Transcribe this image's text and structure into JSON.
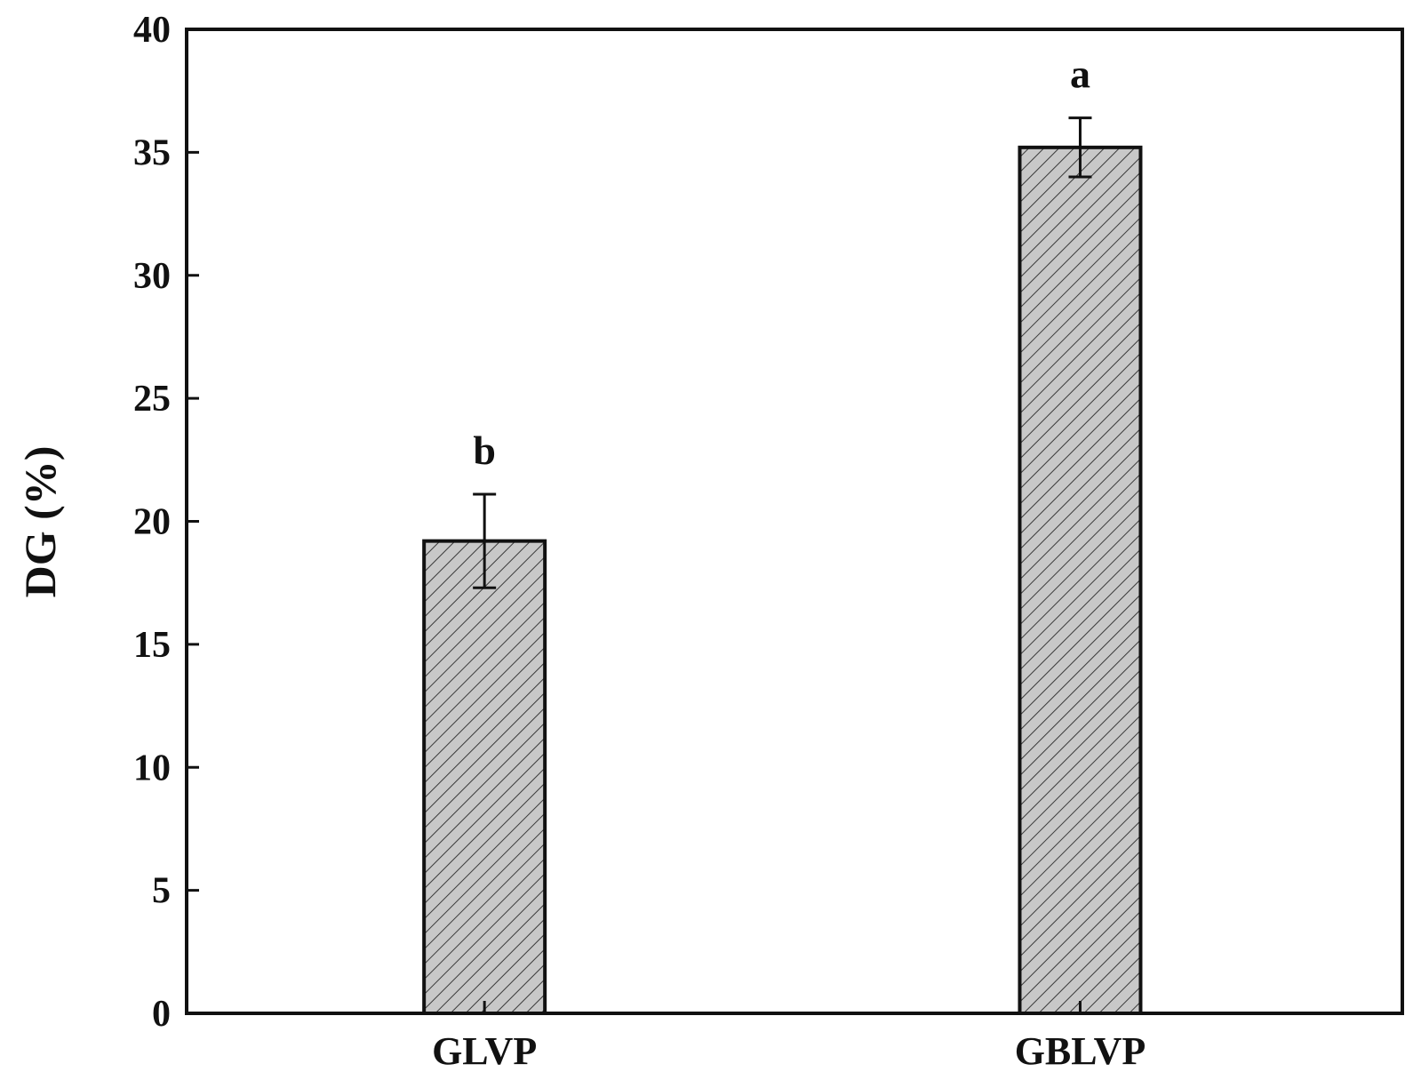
{
  "chart_data": {
    "type": "bar",
    "categories": [
      "GLVP",
      "GBLVP"
    ],
    "values": [
      19.2,
      35.2
    ],
    "errors": [
      1.9,
      1.2
    ],
    "significance_labels": [
      "b",
      "a"
    ],
    "ylabel": "DG (%)",
    "xlabel": "",
    "ylim": [
      0,
      40
    ],
    "yticks": [
      0,
      5,
      10,
      15,
      20,
      25,
      30,
      35,
      40
    ],
    "ytick_labels": [
      "0",
      "5",
      "10",
      "15",
      "20",
      "25",
      "30",
      "35",
      "40"
    ],
    "grid": false,
    "colors": {
      "bar_fill": "#c8c8c8",
      "hatch": "#3a3a3a",
      "outline": "#111111"
    }
  }
}
